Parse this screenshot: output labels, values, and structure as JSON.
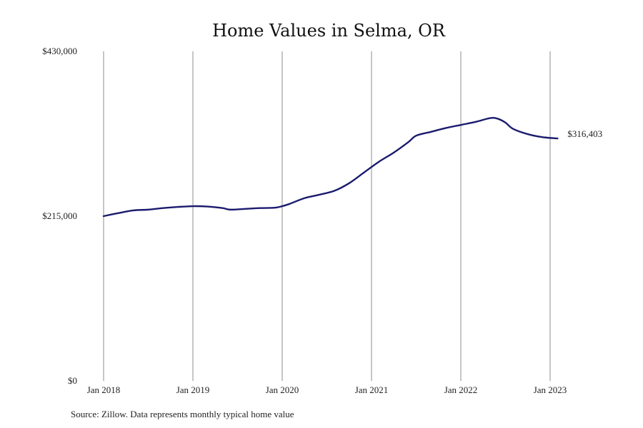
{
  "chart_data": {
    "type": "line",
    "title": "Home Values in Selma, OR",
    "xlabel": "",
    "ylabel": "",
    "y_ticks": [
      "$0",
      "$215,000",
      "$430,000"
    ],
    "ylim": [
      0,
      430000
    ],
    "x_ticks": [
      "Jan 2018",
      "Jan 2019",
      "Jan 2020",
      "Jan 2021",
      "Jan 2022",
      "Jan 2023"
    ],
    "xlim": [
      "2018-01",
      "2023-02"
    ],
    "grid": "vertical lines at each January",
    "series": [
      {
        "color": "#1b1b6e",
        "points": [
          [
            "2018-01",
            215000
          ],
          [
            "2018-03",
            219000
          ],
          [
            "2018-05",
            222500
          ],
          [
            "2018-07",
            223500
          ],
          [
            "2018-09",
            225500
          ],
          [
            "2018-11",
            227000
          ],
          [
            "2019-01",
            228000
          ],
          [
            "2019-03",
            227500
          ],
          [
            "2019-05",
            225500
          ],
          [
            "2019-06",
            223500
          ],
          [
            "2019-08",
            224500
          ],
          [
            "2019-10",
            225500
          ],
          [
            "2019-12",
            226000
          ],
          [
            "2020-01",
            228000
          ],
          [
            "2020-02",
            231000
          ],
          [
            "2020-04",
            238500
          ],
          [
            "2020-06",
            243000
          ],
          [
            "2020-08",
            248000
          ],
          [
            "2020-10",
            258000
          ],
          [
            "2020-12",
            272000
          ],
          [
            "2021-02",
            286000
          ],
          [
            "2021-04",
            298000
          ],
          [
            "2021-06",
            312000
          ],
          [
            "2021-07",
            320000
          ],
          [
            "2021-09",
            325000
          ],
          [
            "2021-11",
            330000
          ],
          [
            "2022-01",
            334000
          ],
          [
            "2022-03",
            338000
          ],
          [
            "2022-05",
            343000
          ],
          [
            "2022-06",
            342000
          ],
          [
            "2022-07",
            337000
          ],
          [
            "2022-08",
            329000
          ],
          [
            "2022-10",
            322000
          ],
          [
            "2022-12",
            318000
          ],
          [
            "2023-02",
            316403
          ]
        ],
        "end_label": "$316,403"
      }
    ],
    "source_note": "Source: Zillow. Data represents monthly typical home value"
  }
}
